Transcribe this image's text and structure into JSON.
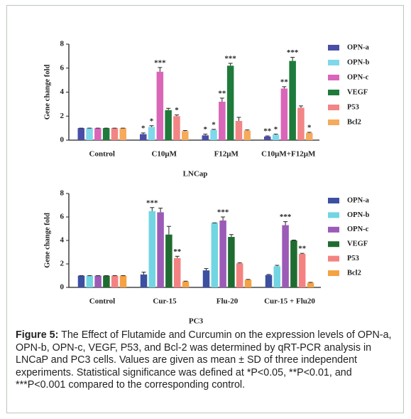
{
  "chart_data": [
    {
      "type": "bar",
      "ylabel": "Gene change fold",
      "xlabel": "LNCap",
      "categories": [
        "Control",
        "C10μM",
        "F12μM",
        "C10μM+F12μM"
      ],
      "ylim": [
        0,
        8
      ],
      "yticks": [
        0,
        2,
        4,
        6,
        8
      ],
      "series": [
        {
          "name": "OPN-a",
          "color": "#4a4ea6",
          "values": [
            1,
            0.5,
            0.4,
            0.3
          ],
          "errors": [
            0,
            0.1,
            0.1,
            0.05
          ],
          "significance": [
            null,
            "*",
            "*",
            "**"
          ]
        },
        {
          "name": "OPN-b",
          "color": "#80d8ea",
          "values": [
            1,
            1.1,
            0.85,
            0.45
          ],
          "errors": [
            0,
            0.1,
            0.05,
            0.05
          ],
          "significance": [
            null,
            "*",
            "*",
            "*"
          ]
        },
        {
          "name": "OPN-c",
          "color": "#d966b9",
          "values": [
            1,
            5.7,
            3.2,
            4.3
          ],
          "errors": [
            0,
            0.35,
            0.3,
            0.15
          ],
          "significance": [
            null,
            "***",
            "**",
            "**"
          ]
        },
        {
          "name": "VEGF",
          "color": "#1f7b3b",
          "values": [
            1,
            2.5,
            6.2,
            6.6
          ],
          "errors": [
            0,
            0.15,
            0.2,
            0.3
          ],
          "significance": [
            null,
            null,
            "***",
            "***"
          ]
        },
        {
          "name": "P53",
          "color": "#f28585",
          "values": [
            1,
            2.0,
            1.6,
            2.7
          ],
          "errors": [
            0,
            0.1,
            0.3,
            0.15
          ],
          "significance": [
            null,
            "*",
            null,
            null
          ]
        },
        {
          "name": "Bcl2",
          "color": "#f5aa5c",
          "values": [
            1,
            0.75,
            0.8,
            0.6
          ],
          "errors": [
            0,
            0.05,
            0.05,
            0.05
          ],
          "significance": [
            null,
            null,
            null,
            "*"
          ]
        }
      ]
    },
    {
      "type": "bar",
      "ylabel": "Gene change fold",
      "xlabel": "PC3",
      "categories": [
        "Control",
        "Cur-15",
        "Flu-20",
        "Cur-15 + Flu20"
      ],
      "ylim": [
        0,
        8
      ],
      "yticks": [
        0,
        2,
        4,
        6,
        8
      ],
      "series": [
        {
          "name": "OPN-a",
          "color": "#3c50a2",
          "values": [
            1,
            1.1,
            1.45,
            1.05
          ],
          "errors": [
            0,
            0.2,
            0.15,
            0.05
          ],
          "significance": [
            null,
            null,
            null,
            null
          ]
        },
        {
          "name": "OPN-b",
          "color": "#72d5e2",
          "values": [
            1,
            6.5,
            5.5,
            1.8
          ],
          "errors": [
            0,
            0.3,
            0,
            0.08
          ],
          "significance": [
            null,
            "***",
            null,
            null
          ]
        },
        {
          "name": "OPN-c",
          "color": "#9b5bb7",
          "values": [
            1,
            6.4,
            5.7,
            5.3
          ],
          "errors": [
            0,
            0.35,
            0.3,
            0.3
          ],
          "significance": [
            null,
            null,
            "***",
            "***"
          ]
        },
        {
          "name": "VEGF",
          "color": "#1f6c30",
          "values": [
            1,
            4.5,
            4.3,
            4.0
          ],
          "errors": [
            0,
            0.7,
            0.2,
            0.03
          ],
          "significance": [
            null,
            null,
            null,
            null
          ]
        },
        {
          "name": "P53",
          "color": "#f58282",
          "values": [
            1,
            2.5,
            2.05,
            2.85
          ],
          "errors": [
            0,
            0.15,
            0.05,
            0.05
          ],
          "significance": [
            null,
            "**",
            null,
            "**"
          ]
        },
        {
          "name": "Bcl2",
          "color": "#f4a244",
          "values": [
            1,
            0.5,
            0.65,
            0.4
          ],
          "errors": [
            0,
            0.03,
            0.03,
            0.03
          ],
          "significance": [
            null,
            null,
            null,
            null
          ]
        }
      ]
    }
  ],
  "caption": {
    "label": "Figure 5:",
    "text": "The Effect of Flutamide and Curcumin on the expression levels of OPN-a, OPN-b, OPN-c, VEGF, P53, and Bcl-2 was determined by qRT-PCR analysis in LNCaP and PC3 cells. Values are given as mean ± SD of three independent experiments. Statistical significance was defined at *P<0.05, **P<0.01, and ***P<0.001 compared to the corresponding control."
  }
}
